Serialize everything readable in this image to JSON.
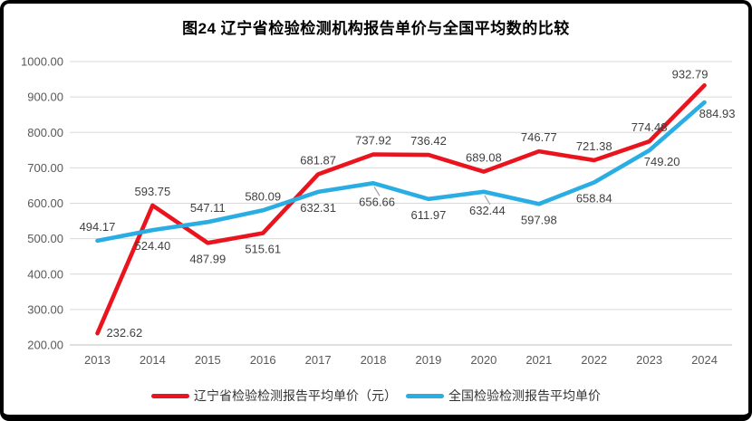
{
  "title": "图24 辽宁省检验检测机构报告单价与全国平均数的比较",
  "chart_data": {
    "type": "line",
    "title": "图24 辽宁省检验检测机构报告单价与全国平均数的比较",
    "categories": [
      "2013",
      "2014",
      "2015",
      "2016",
      "2017",
      "2018",
      "2019",
      "2020",
      "2021",
      "2022",
      "2023",
      "2024"
    ],
    "series": [
      {
        "name": "辽宁省检验检测报告平均单价（元）",
        "color": "#e9141d",
        "values": [
          232.62,
          593.75,
          487.99,
          515.61,
          681.87,
          737.92,
          736.42,
          689.08,
          746.77,
          721.38,
          774.48,
          932.79
        ],
        "label_positions": [
          "right",
          "above",
          "below",
          "below",
          "above",
          "above",
          "above",
          "above",
          "above",
          "above",
          "above",
          "above-left"
        ]
      },
      {
        "name": "全国检验检测报告平均单价",
        "color": "#2aade3",
        "values": [
          494.17,
          524.4,
          547.11,
          580.09,
          632.31,
          656.66,
          611.97,
          632.44,
          597.98,
          658.84,
          749.2,
          884.93
        ],
        "label_positions": [
          "above",
          "below",
          "above",
          "above",
          "below",
          "below-leader",
          "below",
          "below-leader",
          "below",
          "below",
          "below-right",
          "below-right"
        ]
      }
    ],
    "ylim": [
      200,
      1000
    ],
    "ytick_step": 100,
    "ytick_decimals": 2,
    "value_label_decimals": 2,
    "grid": true,
    "legend_position": "bottom",
    "xlabel": "",
    "ylabel": ""
  },
  "colors": {
    "gridline": "#d9d9d9",
    "axis_line": "#bfbfbf",
    "axis_text": "#595959",
    "data_label_text": "#404040",
    "leader_line": "#a6a6a6",
    "frame_border": "#000000",
    "background": "#ffffff"
  }
}
